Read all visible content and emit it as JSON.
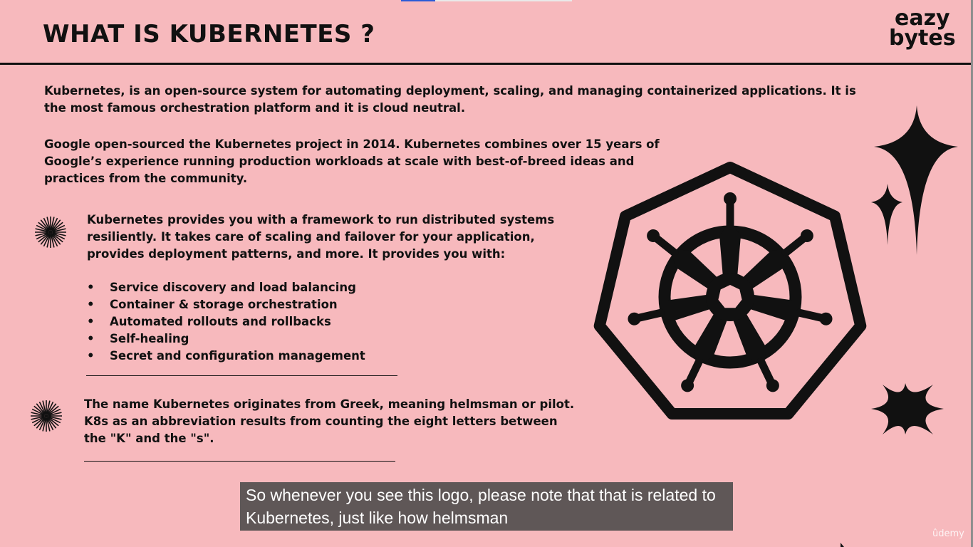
{
  "slide": {
    "title": "WHAT IS KUBERNETES ?",
    "brand_line1": "eazy",
    "brand_line2": "bytes",
    "para1": "Kubernetes, is an open-source system for automating deployment, scaling, and managing containerized applications. It is the most famous orchestration platform and it is cloud neutral.",
    "para2": "Google open-sourced the Kubernetes project in 2014. Kubernetes combines over 15 years of Google’s experience running production workloads at scale with best-of-breed ideas and practices from the community.",
    "para3": "Kubernetes provides you with a framework to run distributed systems resiliently. It takes care of scaling and failover for your application, provides deployment patterns, and more. It provides you with:",
    "bullet_glyph": "•",
    "bullets": [
      "Service discovery and load balancing",
      "Container & storage orchestration",
      "Automated rollouts and rollbacks",
      "Self-healing",
      "Secret and configuration management"
    ],
    "para4": "The name Kubernetes originates from Greek, meaning helmsman or pilot. K8s as an abbreviation results from counting the eight letters between the \"K\" and the \"s\"."
  },
  "caption": {
    "text": "So whenever you see this logo, please note that that is related to Kubernetes, just like how helmsman"
  },
  "watermark": "ûdemy",
  "icons": [
    "sunburst-icon",
    "kubernetes-logo-icon",
    "sparkle-star-icon"
  ],
  "colors": {
    "background": "#f7b9bd",
    "text": "#111111",
    "caption_bg": "#5f5757"
  }
}
